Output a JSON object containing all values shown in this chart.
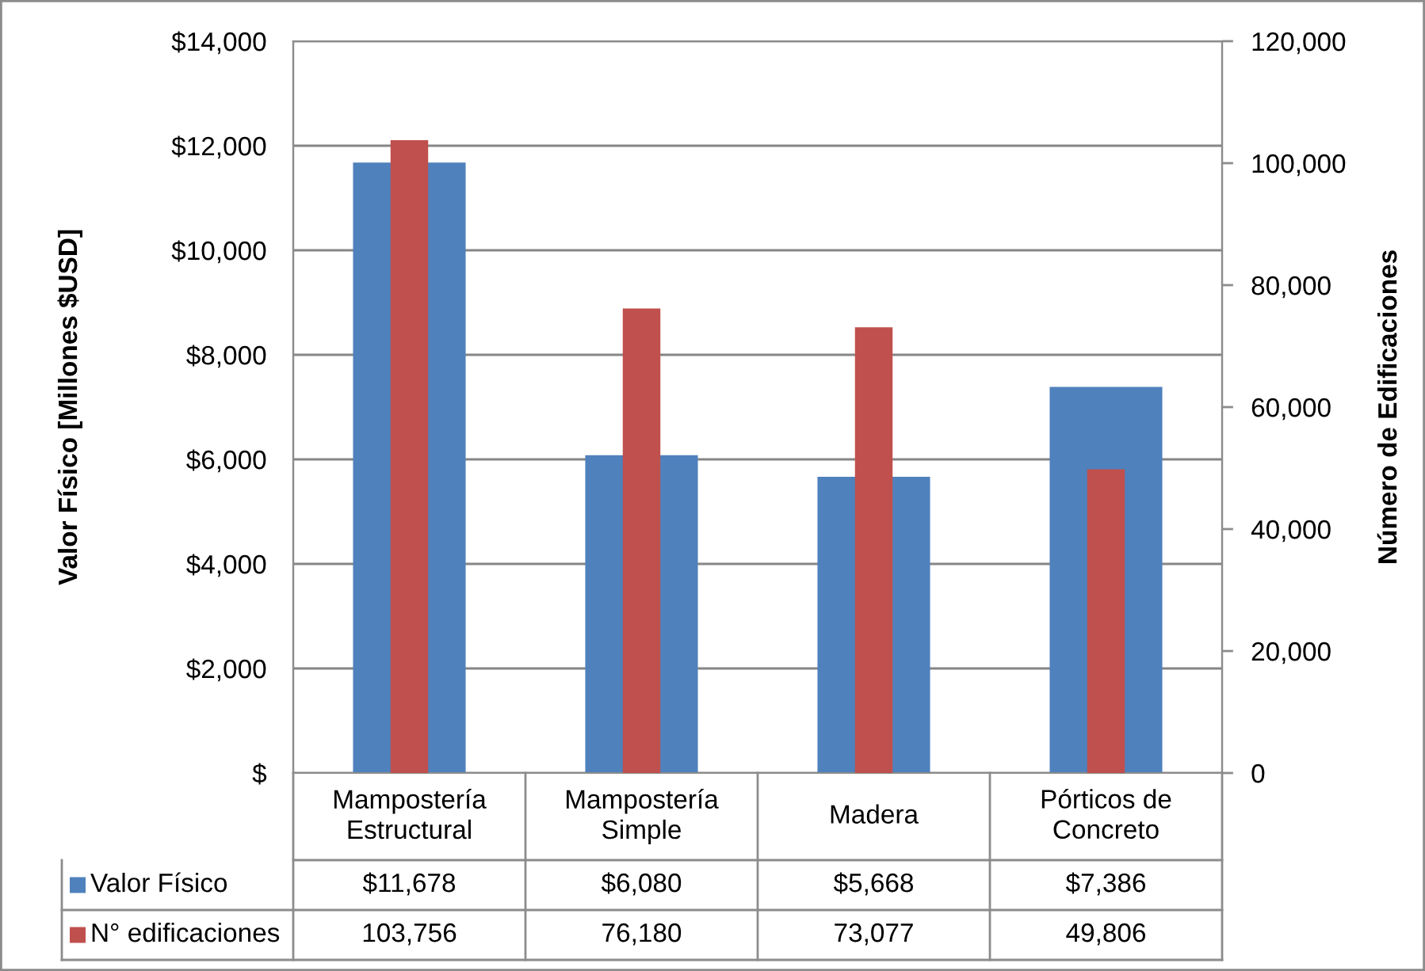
{
  "chart_data": {
    "type": "bar",
    "ylabel": "Valor Físico [Millones $USD]",
    "y2label": "Número de Edificaciones",
    "categories": [
      "Mampostería\nEstructural",
      "Mampostería\nSimple",
      "Madera",
      "Pórticos de\nConcreto"
    ],
    "series": [
      {
        "name": "Valor Físico",
        "color": "#4f81bd",
        "values": [
          11678,
          6080,
          5668,
          7386
        ],
        "value_labels": [
          "$11,678",
          "$6,080",
          "$5,668",
          "$7,386"
        ]
      },
      {
        "name": "N° edificaciones",
        "color": "#c0504d",
        "axis": "y2",
        "values": [
          103756,
          76180,
          73077,
          49806
        ],
        "value_labels": [
          "103,756",
          "76,180",
          "73,077",
          "49,806"
        ]
      }
    ],
    "ylim": [
      0,
      14000
    ],
    "yticks": [
      {
        "value": 0,
        "label": "$"
      },
      {
        "value": 2000,
        "label": "$2,000"
      },
      {
        "value": 4000,
        "label": "$4,000"
      },
      {
        "value": 6000,
        "label": "$6,000"
      },
      {
        "value": 8000,
        "label": "$8,000"
      },
      {
        "value": 10000,
        "label": "$10,000"
      },
      {
        "value": 12000,
        "label": "$12,000"
      },
      {
        "value": 14000,
        "label": "$14,000"
      }
    ],
    "y2lim": [
      0,
      120000
    ],
    "y2ticks": [
      0,
      {
        "value": 20000,
        "label": "20,000"
      },
      {
        "value": 40000,
        "label": "40,000"
      },
      {
        "value": 60000,
        "label": "60,000"
      },
      {
        "value": 80000,
        "label": "80,000"
      },
      {
        "value": 100000,
        "label": "100,000"
      },
      {
        "value": 120000,
        "label": "120,000"
      }
    ],
    "grid": "y",
    "legend": "bottom"
  }
}
